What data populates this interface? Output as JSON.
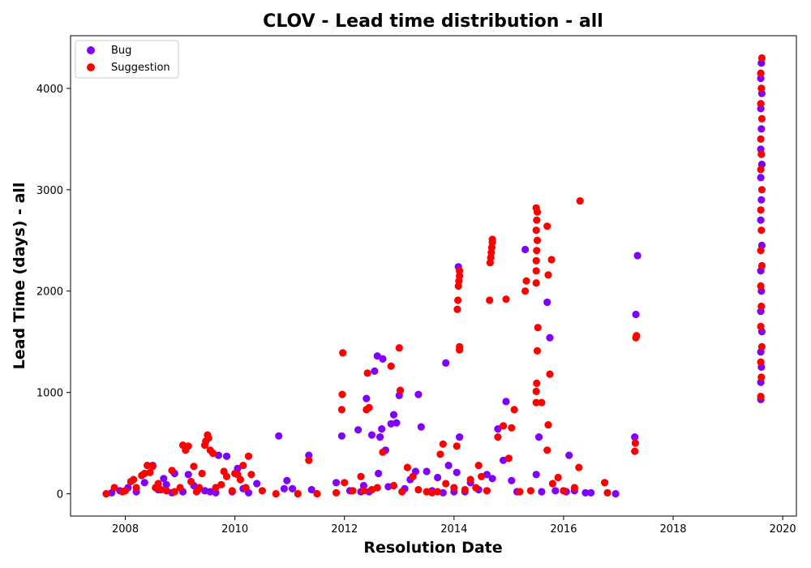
{
  "chart_data": {
    "type": "scatter",
    "title": "CLOV - Lead time distribution - all",
    "xlabel": "Resolution Date",
    "ylabel": "Lead Time (days) - all",
    "xlim": [
      2007.0,
      2020.25
    ],
    "ylim": [
      -220,
      4520
    ],
    "xticks": [
      2008,
      2010,
      2012,
      2014,
      2016,
      2018,
      2020
    ],
    "yticks": [
      0,
      1000,
      2000,
      3000,
      4000
    ],
    "grid": false,
    "legend_position": "top-left",
    "series": [
      {
        "name": "Bug",
        "color": "#7f00ff",
        "points": [
          [
            2007.75,
            10
          ],
          [
            2007.9,
            30
          ],
          [
            2008.05,
            60
          ],
          [
            2008.2,
            20
          ],
          [
            2008.35,
            110
          ],
          [
            2008.5,
            280
          ],
          [
            2008.6,
            40
          ],
          [
            2008.7,
            150
          ],
          [
            2008.75,
            90
          ],
          [
            2008.85,
            10
          ],
          [
            2008.9,
            200
          ],
          [
            2009.05,
            20
          ],
          [
            2009.15,
            190
          ],
          [
            2009.25,
            80
          ],
          [
            2009.35,
            50
          ],
          [
            2009.45,
            30
          ],
          [
            2009.55,
            20
          ],
          [
            2009.65,
            10
          ],
          [
            2009.7,
            380
          ],
          [
            2009.85,
            370
          ],
          [
            2009.95,
            20
          ],
          [
            2010.05,
            250
          ],
          [
            2010.15,
            50
          ],
          [
            2010.25,
            10
          ],
          [
            2010.4,
            100
          ],
          [
            2010.8,
            570
          ],
          [
            2010.9,
            50
          ],
          [
            2010.95,
            130
          ],
          [
            2011.05,
            50
          ],
          [
            2011.35,
            380
          ],
          [
            2011.4,
            40
          ],
          [
            2011.85,
            110
          ],
          [
            2011.95,
            570
          ],
          [
            2012.1,
            30
          ],
          [
            2012.25,
            630
          ],
          [
            2012.3,
            20
          ],
          [
            2012.35,
            80
          ],
          [
            2012.4,
            940
          ],
          [
            2012.45,
            20
          ],
          [
            2012.5,
            580
          ],
          [
            2012.55,
            1210
          ],
          [
            2012.6,
            1360
          ],
          [
            2012.62,
            200
          ],
          [
            2012.65,
            560
          ],
          [
            2012.68,
            640
          ],
          [
            2012.7,
            1330
          ],
          [
            2012.75,
            430
          ],
          [
            2012.8,
            70
          ],
          [
            2012.85,
            690
          ],
          [
            2012.9,
            780
          ],
          [
            2012.95,
            700
          ],
          [
            2013.0,
            970
          ],
          [
            2013.1,
            50
          ],
          [
            2013.2,
            140
          ],
          [
            2013.3,
            220
          ],
          [
            2013.35,
            980
          ],
          [
            2013.4,
            660
          ],
          [
            2013.5,
            220
          ],
          [
            2013.6,
            30
          ],
          [
            2013.7,
            160
          ],
          [
            2013.8,
            10
          ],
          [
            2013.85,
            1290
          ],
          [
            2013.9,
            280
          ],
          [
            2014.0,
            20
          ],
          [
            2014.05,
            210
          ],
          [
            2014.08,
            2240
          ],
          [
            2014.1,
            560
          ],
          [
            2014.2,
            20
          ],
          [
            2014.3,
            110
          ],
          [
            2014.45,
            40
          ],
          [
            2014.6,
            190
          ],
          [
            2014.7,
            150
          ],
          [
            2014.8,
            640
          ],
          [
            2014.9,
            330
          ],
          [
            2014.95,
            910
          ],
          [
            2015.05,
            130
          ],
          [
            2015.15,
            20
          ],
          [
            2015.3,
            2410
          ],
          [
            2015.5,
            190
          ],
          [
            2015.55,
            560
          ],
          [
            2015.6,
            20
          ],
          [
            2015.7,
            1890
          ],
          [
            2015.75,
            1540
          ],
          [
            2015.85,
            30
          ],
          [
            2016.05,
            20
          ],
          [
            2016.1,
            380
          ],
          [
            2016.2,
            30
          ],
          [
            2016.4,
            10
          ],
          [
            2016.5,
            10
          ],
          [
            2016.75,
            110
          ],
          [
            2016.95,
            0
          ],
          [
            2017.3,
            560
          ],
          [
            2017.32,
            1770
          ],
          [
            2017.35,
            2350
          ],
          [
            2019.6,
            930
          ],
          [
            2019.6,
            1100
          ],
          [
            2019.61,
            1250
          ],
          [
            2019.6,
            1400
          ],
          [
            2019.62,
            1600
          ],
          [
            2019.6,
            1800
          ],
          [
            2019.61,
            2000
          ],
          [
            2019.6,
            2200
          ],
          [
            2019.62,
            2450
          ],
          [
            2019.6,
            2700
          ],
          [
            2019.61,
            2900
          ],
          [
            2019.6,
            3120
          ],
          [
            2019.62,
            3250
          ],
          [
            2019.6,
            3400
          ],
          [
            2019.61,
            3600
          ],
          [
            2019.6,
            3800
          ],
          [
            2019.62,
            3950
          ],
          [
            2019.6,
            4100
          ],
          [
            2019.61,
            4250
          ]
        ]
      },
      {
        "name": "Suggestion",
        "color": "#ff0000",
        "points": [
          [
            2007.65,
            0
          ],
          [
            2007.8,
            60
          ],
          [
            2007.95,
            20
          ],
          [
            2008.0,
            30
          ],
          [
            2008.1,
            120
          ],
          [
            2008.15,
            140
          ],
          [
            2008.2,
            60
          ],
          [
            2008.3,
            180
          ],
          [
            2008.35,
            200
          ],
          [
            2008.4,
            280
          ],
          [
            2008.45,
            210
          ],
          [
            2008.5,
            270
          ],
          [
            2008.55,
            60
          ],
          [
            2008.6,
            100
          ],
          [
            2008.65,
            40
          ],
          [
            2008.75,
            30
          ],
          [
            2008.85,
            230
          ],
          [
            2008.9,
            20
          ],
          [
            2009.0,
            60
          ],
          [
            2009.05,
            480
          ],
          [
            2009.1,
            430
          ],
          [
            2009.15,
            470
          ],
          [
            2009.2,
            120
          ],
          [
            2009.25,
            270
          ],
          [
            2009.3,
            20
          ],
          [
            2009.35,
            60
          ],
          [
            2009.4,
            200
          ],
          [
            2009.45,
            480
          ],
          [
            2009.47,
            520
          ],
          [
            2009.5,
            580
          ],
          [
            2009.52,
            550
          ],
          [
            2009.55,
            430
          ],
          [
            2009.6,
            400
          ],
          [
            2009.65,
            60
          ],
          [
            2009.75,
            90
          ],
          [
            2009.8,
            220
          ],
          [
            2009.85,
            170
          ],
          [
            2009.95,
            30
          ],
          [
            2010.0,
            200
          ],
          [
            2010.05,
            190
          ],
          [
            2010.1,
            140
          ],
          [
            2010.15,
            280
          ],
          [
            2010.2,
            60
          ],
          [
            2010.25,
            370
          ],
          [
            2010.3,
            190
          ],
          [
            2010.5,
            30
          ],
          [
            2010.75,
            0
          ],
          [
            2011.15,
            0
          ],
          [
            2011.35,
            330
          ],
          [
            2011.5,
            0
          ],
          [
            2011.85,
            10
          ],
          [
            2011.95,
            830
          ],
          [
            2011.96,
            980
          ],
          [
            2011.97,
            1390
          ],
          [
            2012.0,
            110
          ],
          [
            2012.15,
            30
          ],
          [
            2012.3,
            170
          ],
          [
            2012.35,
            30
          ],
          [
            2012.4,
            830
          ],
          [
            2012.42,
            1190
          ],
          [
            2012.45,
            850
          ],
          [
            2012.5,
            40
          ],
          [
            2012.6,
            60
          ],
          [
            2012.7,
            410
          ],
          [
            2012.85,
            1260
          ],
          [
            2012.9,
            80
          ],
          [
            2013.0,
            1440
          ],
          [
            2013.02,
            1020
          ],
          [
            2013.05,
            20
          ],
          [
            2013.15,
            260
          ],
          [
            2013.25,
            170
          ],
          [
            2013.35,
            40
          ],
          [
            2013.5,
            20
          ],
          [
            2013.6,
            10
          ],
          [
            2013.7,
            20
          ],
          [
            2013.75,
            390
          ],
          [
            2013.8,
            490
          ],
          [
            2013.85,
            100
          ],
          [
            2014.0,
            60
          ],
          [
            2014.05,
            470
          ],
          [
            2014.06,
            1820
          ],
          [
            2014.07,
            1910
          ],
          [
            2014.08,
            2050
          ],
          [
            2014.09,
            2100
          ],
          [
            2014.1,
            2150
          ],
          [
            2014.1,
            2200
          ],
          [
            2014.1,
            1420
          ],
          [
            2014.1,
            1450
          ],
          [
            2014.2,
            40
          ],
          [
            2014.3,
            140
          ],
          [
            2014.4,
            60
          ],
          [
            2014.45,
            280
          ],
          [
            2014.5,
            170
          ],
          [
            2014.6,
            30
          ],
          [
            2014.65,
            1910
          ],
          [
            2014.66,
            2280
          ],
          [
            2014.67,
            2330
          ],
          [
            2014.68,
            2380
          ],
          [
            2014.69,
            2430
          ],
          [
            2014.7,
            2480
          ],
          [
            2014.7,
            2510
          ],
          [
            2014.8,
            560
          ],
          [
            2014.9,
            670
          ],
          [
            2014.95,
            1920
          ],
          [
            2015.0,
            350
          ],
          [
            2015.05,
            650
          ],
          [
            2015.1,
            830
          ],
          [
            2015.2,
            20
          ],
          [
            2015.3,
            2000
          ],
          [
            2015.32,
            2100
          ],
          [
            2015.4,
            30
          ],
          [
            2015.5,
            900
          ],
          [
            2015.5,
            1010
          ],
          [
            2015.51,
            1090
          ],
          [
            2015.52,
            1410
          ],
          [
            2015.53,
            1640
          ],
          [
            2015.5,
            2080
          ],
          [
            2015.5,
            2200
          ],
          [
            2015.5,
            2300
          ],
          [
            2015.51,
            2400
          ],
          [
            2015.52,
            2500
          ],
          [
            2015.5,
            2600
          ],
          [
            2015.51,
            2700
          ],
          [
            2015.52,
            2780
          ],
          [
            2015.5,
            2820
          ],
          [
            2015.6,
            900
          ],
          [
            2015.7,
            2640
          ],
          [
            2015.72,
            2160
          ],
          [
            2015.75,
            1180
          ],
          [
            2015.78,
            2310
          ],
          [
            2015.7,
            430
          ],
          [
            2015.72,
            680
          ],
          [
            2015.8,
            100
          ],
          [
            2015.9,
            160
          ],
          [
            2016.0,
            30
          ],
          [
            2016.2,
            60
          ],
          [
            2016.28,
            260
          ],
          [
            2016.3,
            2890
          ],
          [
            2016.75,
            110
          ],
          [
            2016.8,
            10
          ],
          [
            2017.3,
            420
          ],
          [
            2017.31,
            500
          ],
          [
            2017.32,
            1540
          ],
          [
            2017.33,
            1560
          ],
          [
            2019.6,
            960
          ],
          [
            2019.61,
            1150
          ],
          [
            2019.6,
            1300
          ],
          [
            2019.62,
            1450
          ],
          [
            2019.6,
            1650
          ],
          [
            2019.61,
            1850
          ],
          [
            2019.6,
            2050
          ],
          [
            2019.62,
            2250
          ],
          [
            2019.6,
            2400
          ],
          [
            2019.61,
            2600
          ],
          [
            2019.6,
            2800
          ],
          [
            2019.62,
            3000
          ],
          [
            2019.6,
            3200
          ],
          [
            2019.61,
            3350
          ],
          [
            2019.6,
            3500
          ],
          [
            2019.62,
            3700
          ],
          [
            2019.6,
            3850
          ],
          [
            2019.61,
            4000
          ],
          [
            2019.6,
            4150
          ],
          [
            2019.62,
            4300
          ]
        ]
      }
    ]
  }
}
